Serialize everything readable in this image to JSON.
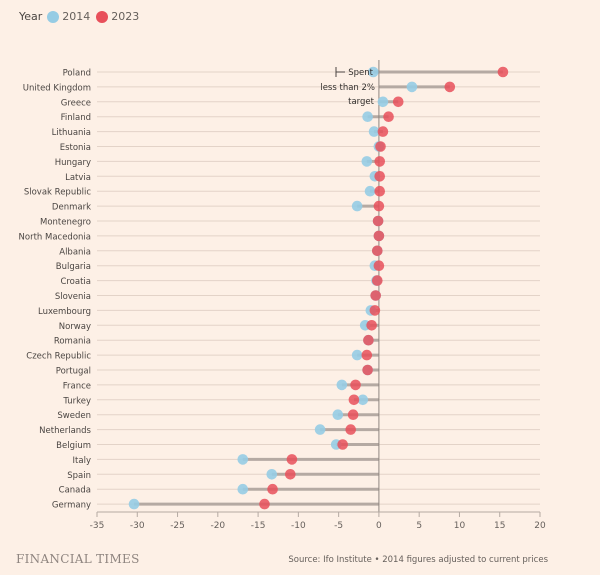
{
  "legend": {
    "title": "Year",
    "items": [
      {
        "label": "2014",
        "color": "#96cce4"
      },
      {
        "label": "2023",
        "color": "#e8505b"
      }
    ]
  },
  "annotation": {
    "lines": [
      "Spent",
      "less than 2%",
      "target"
    ]
  },
  "footer": {
    "brand": "FINANCIAL TIMES",
    "source": "Source: Ifo Institute • 2014 figures adjusted to current prices"
  },
  "chart_data": {
    "type": "dumbbell",
    "title": "",
    "xlabel": "",
    "ylabel": "",
    "xlim": [
      -35,
      20
    ],
    "xticks": [
      -35,
      -30,
      -25,
      -20,
      -15,
      -10,
      -5,
      0,
      5,
      10,
      15,
      20
    ],
    "xtick_labels": [
      "-35",
      "-30",
      "-25",
      "-20",
      "-15",
      "-10",
      "-5",
      "0",
      "5",
      "10",
      "15",
      "20"
    ],
    "grid": true,
    "legend_position": "top-left",
    "reference_line": 0,
    "categories": [
      "Poland",
      "United Kingdom",
      "Greece",
      "Finland",
      "Lithuania",
      "Estonia",
      "Hungary",
      "Latvia",
      "Slovak Republic",
      "Denmark",
      "Montenegro",
      "North Macedonia",
      "Albania",
      "Bulgaria",
      "Croatia",
      "Slovenia",
      "Luxembourg",
      "Norway",
      "Romania",
      "Czech Republic",
      "Portugal",
      "France",
      "Turkey",
      "Sweden",
      "Netherlands",
      "Belgium",
      "Italy",
      "Spain",
      "Canada",
      "Germany"
    ],
    "series": [
      {
        "name": "2014",
        "color": "#96cce4",
        "values": [
          -0.7,
          4.1,
          0.5,
          -1.4,
          -0.6,
          0.0,
          -1.5,
          -0.5,
          -1.1,
          -2.7,
          -0.1,
          0.0,
          -0.2,
          -0.5,
          -0.3,
          -0.4,
          -1.0,
          -1.7,
          -1.3,
          -2.7,
          -1.4,
          -4.6,
          -2.0,
          -5.1,
          -7.3,
          -5.3,
          -16.9,
          -13.3,
          -16.9,
          -30.4
        ]
      },
      {
        "name": "2023",
        "color": "#e8505b",
        "values": [
          15.4,
          8.8,
          2.4,
          1.2,
          0.5,
          0.2,
          0.1,
          0.1,
          0.1,
          0.0,
          -0.1,
          0.0,
          -0.2,
          0.0,
          -0.2,
          -0.4,
          -0.5,
          -0.9,
          -1.3,
          -1.5,
          -1.4,
          -2.9,
          -3.1,
          -3.2,
          -3.5,
          -4.5,
          -10.8,
          -11.0,
          -13.2,
          -14.2
        ]
      }
    ]
  }
}
